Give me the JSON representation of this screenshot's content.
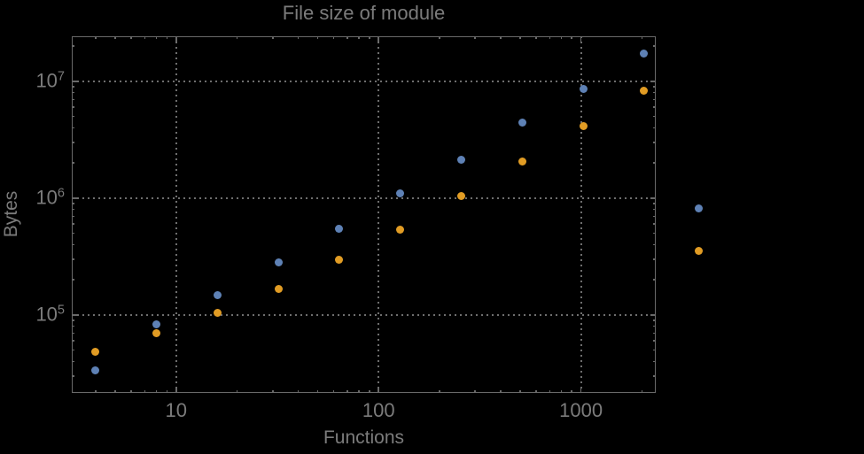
{
  "figure": {
    "title": "File size of module",
    "x_axis_label": "Functions",
    "y_axis_label": "Bytes"
  },
  "colors": {
    "background": "#000000",
    "frame": "#696969",
    "gridlines": "#6e6e6e",
    "text": "#7b7b7b",
    "series_blue": "#5e81b5",
    "series_orange": "#e19c24"
  },
  "chart_data": {
    "type": "scatter",
    "title": "File size of module",
    "xlabel": "Functions",
    "ylabel": "Bytes",
    "x_scale": "log",
    "y_scale": "log",
    "xlim": [
      3.05,
      2340
    ],
    "ylim": [
      21500,
      24300000
    ],
    "grid": "dotted lines at major ticks, frame ticks on all four sides",
    "legend": "none",
    "clip_points_to_frame": false,
    "marker": "filled circle",
    "x": [
      4,
      8,
      16,
      32,
      64,
      128,
      256,
      512,
      1024,
      2048,
      3800
    ],
    "series": [
      {
        "name": "series-1-blue",
        "color": "#5e81b5",
        "values": [
          33300,
          83000,
          149000,
          280000,
          543000,
          1090000,
          2150000,
          4400000,
          8550000,
          17200000,
          815000
        ]
      },
      {
        "name": "series-2-orange",
        "color": "#e19c24",
        "values": [
          48100,
          69600,
          105000,
          166000,
          295000,
          533000,
          1040000,
          2050000,
          4110000,
          8260000,
          351000
        ]
      }
    ],
    "x_major_ticks": [
      {
        "value": 10,
        "label": "10"
      },
      {
        "value": 100,
        "label": "100"
      },
      {
        "value": 1000,
        "label": "1000"
      }
    ],
    "y_major_ticks": [
      {
        "value": 100000,
        "base": "10",
        "exp": "5"
      },
      {
        "value": 1000000,
        "base": "10",
        "exp": "6"
      },
      {
        "value": 10000000,
        "base": "10",
        "exp": "7"
      }
    ],
    "x_minor_ticks": [
      4,
      5,
      6,
      7,
      8,
      9,
      20,
      30,
      40,
      50,
      60,
      70,
      80,
      90,
      200,
      300,
      400,
      500,
      600,
      700,
      800,
      900,
      2000
    ],
    "y_minor_ticks": [
      30000,
      40000,
      50000,
      60000,
      70000,
      80000,
      90000,
      200000,
      300000,
      400000,
      500000,
      600000,
      700000,
      800000,
      900000,
      2000000,
      3000000,
      4000000,
      5000000,
      6000000,
      7000000,
      8000000,
      9000000,
      20000000
    ]
  }
}
